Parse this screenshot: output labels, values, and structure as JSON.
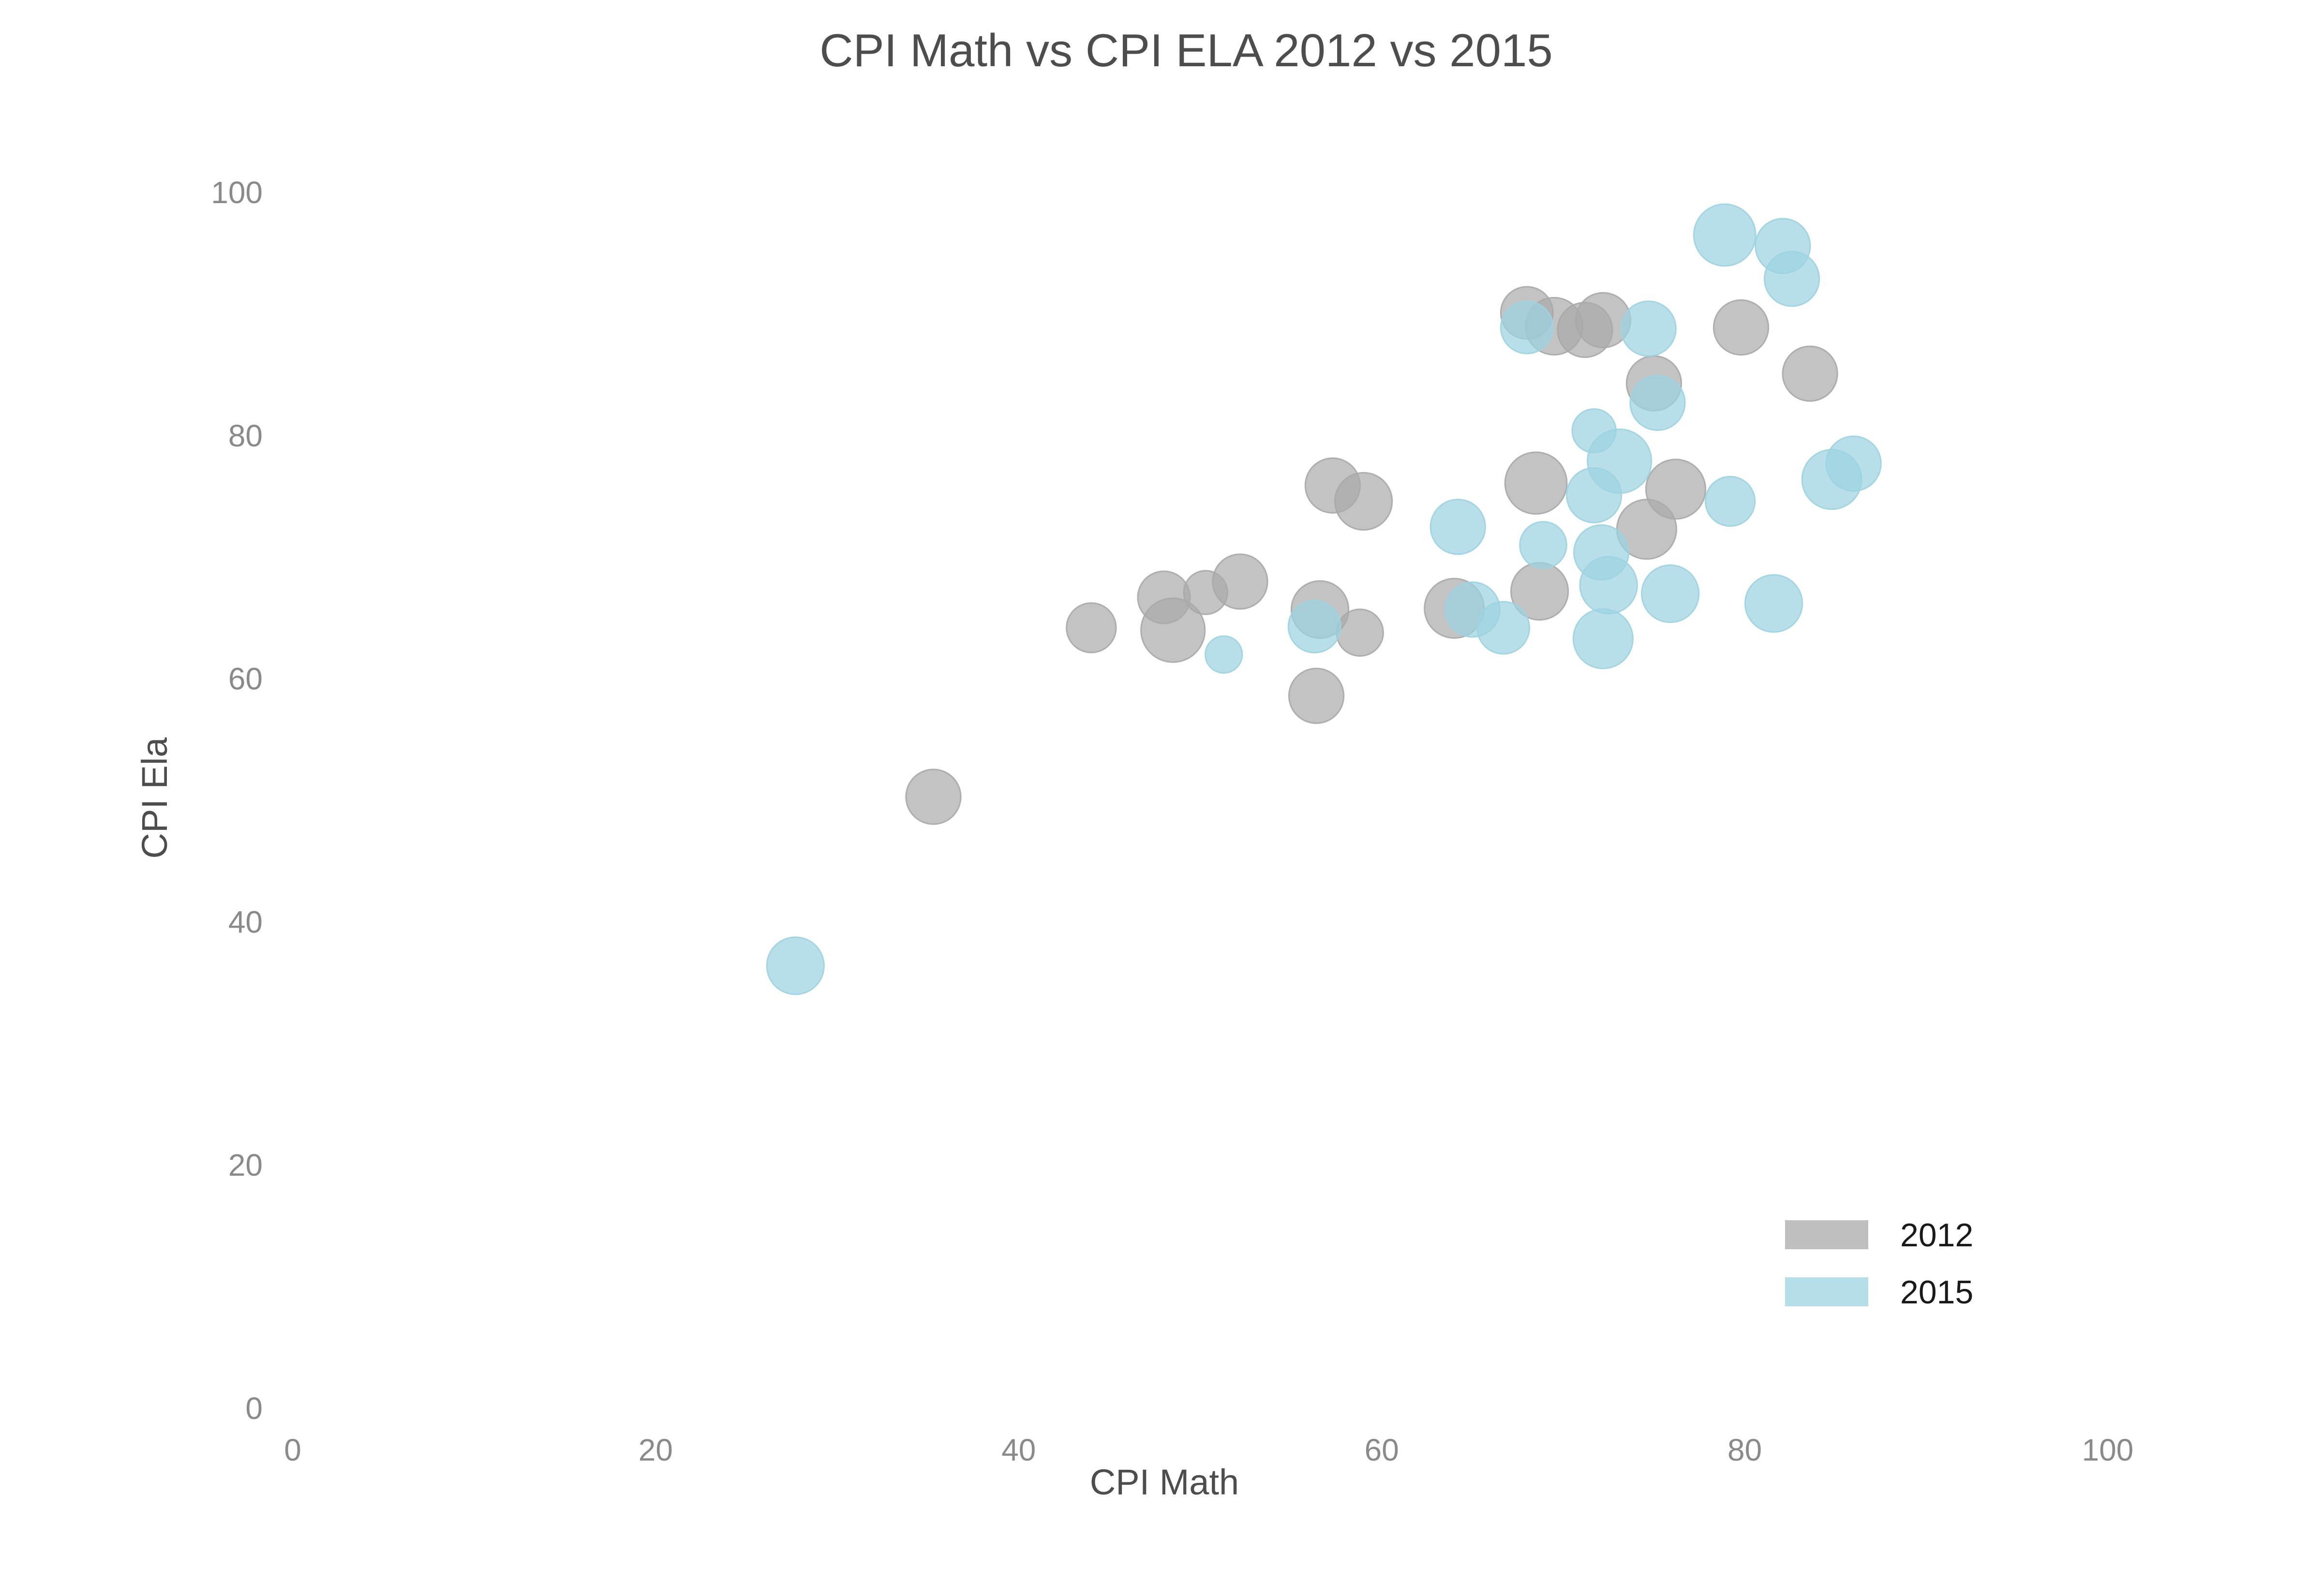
{
  "chart_data": {
    "type": "scatter",
    "title": "CPI Math vs CPI ELA 2012 vs 2015",
    "xlabel": "CPI Math",
    "ylabel": "CPI Ela",
    "xlim": [
      0,
      100
    ],
    "ylim": [
      0,
      100
    ],
    "xticks": [
      "0",
      "20",
      "40",
      "60",
      "80",
      "100"
    ],
    "yticks": [
      "0",
      "20",
      "40",
      "60",
      "80",
      "100"
    ],
    "grid": false,
    "legend_position": "bottom-right",
    "series": [
      {
        "name": "2012",
        "color": "#a9a9a9",
        "points": [
          {
            "x": 35.3,
            "y": 50.3,
            "size": 1.1
          },
          {
            "x": 44.0,
            "y": 64.2,
            "size": 0.9
          },
          {
            "x": 48.0,
            "y": 66.7,
            "size": 1.0
          },
          {
            "x": 48.5,
            "y": 64.0,
            "size": 1.5
          },
          {
            "x": 50.3,
            "y": 67.1,
            "size": 0.7
          },
          {
            "x": 52.2,
            "y": 68.0,
            "size": 1.1
          },
          {
            "x": 56.4,
            "y": 58.6,
            "size": 1.1
          },
          {
            "x": 56.6,
            "y": 65.7,
            "size": 1.2
          },
          {
            "x": 57.3,
            "y": 75.9,
            "size": 1.1
          },
          {
            "x": 58.8,
            "y": 63.8,
            "size": 0.8
          },
          {
            "x": 59.0,
            "y": 74.6,
            "size": 1.2
          },
          {
            "x": 64.0,
            "y": 65.8,
            "size": 1.3
          },
          {
            "x": 68.0,
            "y": 90.1,
            "size": 1.0
          },
          {
            "x": 68.5,
            "y": 76.1,
            "size": 1.4
          },
          {
            "x": 68.7,
            "y": 67.2,
            "size": 1.2
          },
          {
            "x": 69.5,
            "y": 89.0,
            "size": 1.2
          },
          {
            "x": 71.2,
            "y": 88.7,
            "size": 1.1
          },
          {
            "x": 72.2,
            "y": 89.5,
            "size": 1.1
          },
          {
            "x": 74.6,
            "y": 72.3,
            "size": 1.3
          },
          {
            "x": 75.0,
            "y": 84.3,
            "size": 1.1
          },
          {
            "x": 76.2,
            "y": 75.6,
            "size": 1.3
          },
          {
            "x": 79.8,
            "y": 88.9,
            "size": 1.1
          },
          {
            "x": 83.6,
            "y": 85.1,
            "size": 1.1
          }
        ]
      },
      {
        "name": "2015",
        "color": "#9dd3e0",
        "points": [
          {
            "x": 27.7,
            "y": 36.4,
            "size": 1.2
          },
          {
            "x": 51.3,
            "y": 62.0,
            "size": 0.5
          },
          {
            "x": 56.3,
            "y": 64.3,
            "size": 1.0
          },
          {
            "x": 64.2,
            "y": 72.5,
            "size": 1.1
          },
          {
            "x": 65.0,
            "y": 65.7,
            "size": 1.1
          },
          {
            "x": 66.7,
            "y": 64.2,
            "size": 1.0
          },
          {
            "x": 68.0,
            "y": 88.9,
            "size": 1.0
          },
          {
            "x": 68.9,
            "y": 71.0,
            "size": 0.8
          },
          {
            "x": 71.7,
            "y": 80.4,
            "size": 0.7
          },
          {
            "x": 71.7,
            "y": 75.1,
            "size": 1.1
          },
          {
            "x": 72.1,
            "y": 70.4,
            "size": 1.1
          },
          {
            "x": 72.2,
            "y": 63.3,
            "size": 1.3
          },
          {
            "x": 72.5,
            "y": 67.7,
            "size": 1.2
          },
          {
            "x": 73.1,
            "y": 77.9,
            "size": 1.5
          },
          {
            "x": 74.7,
            "y": 88.8,
            "size": 1.1
          },
          {
            "x": 75.2,
            "y": 82.7,
            "size": 1.1
          },
          {
            "x": 75.9,
            "y": 67.0,
            "size": 1.2
          },
          {
            "x": 78.9,
            "y": 96.5,
            "size": 1.4
          },
          {
            "x": 79.2,
            "y": 74.6,
            "size": 0.9
          },
          {
            "x": 81.6,
            "y": 66.2,
            "size": 1.2
          },
          {
            "x": 82.1,
            "y": 95.6,
            "size": 1.1
          },
          {
            "x": 82.6,
            "y": 92.9,
            "size": 1.1
          },
          {
            "x": 84.8,
            "y": 76.4,
            "size": 1.3
          },
          {
            "x": 86.0,
            "y": 77.7,
            "size": 1.1
          }
        ]
      }
    ]
  }
}
